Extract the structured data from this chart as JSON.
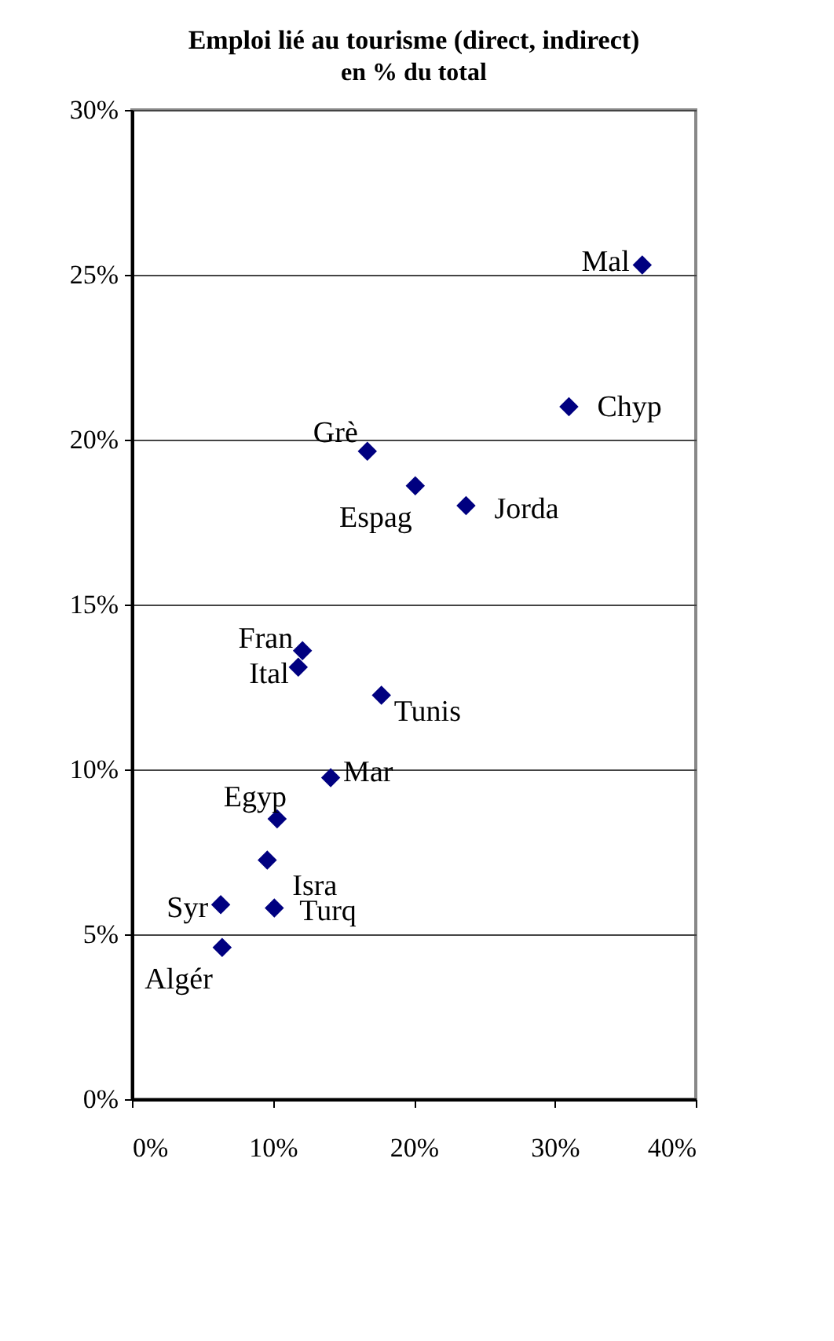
{
  "chart_data": {
    "type": "scatter",
    "title": "Emploi lié au tourisme (direct, indirect)",
    "subtitle": "en % du total",
    "x": [
      36.2,
      31.0,
      16.7,
      20.1,
      23.7,
      12.1,
      11.8,
      17.7,
      14.1,
      10.3,
      9.6,
      10.1,
      6.3,
      6.4
    ],
    "series": [
      {
        "color": "#000080",
        "values": [
          25.3,
          21.0,
          19.65,
          18.6,
          18.0,
          13.6,
          13.1,
          12.25,
          9.75,
          8.5,
          7.25,
          5.8,
          5.9,
          4.6
        ]
      }
    ],
    "annotations": [
      {
        "text": "Mal",
        "x": 36.2,
        "y": 25.3
      },
      {
        "text": "Chyp",
        "x": 31.0,
        "y": 21.0
      },
      {
        "text": "Grè",
        "x": 16.7,
        "y": 19.65
      },
      {
        "text": "Espag",
        "x": 20.1,
        "y": 18.6
      },
      {
        "text": "Jorda",
        "x": 23.7,
        "y": 18.0
      },
      {
        "text": "Fran",
        "x": 12.1,
        "y": 13.6
      },
      {
        "text": "Ital",
        "x": 11.8,
        "y": 13.1
      },
      {
        "text": "Tunis",
        "x": 17.7,
        "y": 12.25
      },
      {
        "text": "Mar",
        "x": 14.1,
        "y": 9.75
      },
      {
        "text": "Egyp",
        "x": 10.3,
        "y": 8.5
      },
      {
        "text": "Isra",
        "x": 9.6,
        "y": 7.25
      },
      {
        "text": "Turq",
        "x": 10.1,
        "y": 5.8
      },
      {
        "text": "Syr",
        "x": 6.3,
        "y": 5.9
      },
      {
        "text": "Algér",
        "x": 6.4,
        "y": 4.6
      }
    ],
    "xlim": [
      0,
      40
    ],
    "ylim": [
      0,
      30
    ],
    "xticks": [
      {
        "value": 0,
        "label": "0%"
      },
      {
        "value": 10,
        "label": "10%"
      },
      {
        "value": 20,
        "label": "20%"
      },
      {
        "value": 30,
        "label": "30%"
      },
      {
        "value": 40,
        "label": "40%"
      }
    ],
    "yticks": [
      {
        "value": 0,
        "label": "0%"
      },
      {
        "value": 5,
        "label": "5%"
      },
      {
        "value": 10,
        "label": "10%"
      },
      {
        "value": 15,
        "label": "15%"
      },
      {
        "value": 20,
        "label": "20%"
      },
      {
        "value": 25,
        "label": "25%"
      },
      {
        "value": 30,
        "label": "30%"
      }
    ],
    "grid": "y",
    "marker": "diamond"
  }
}
